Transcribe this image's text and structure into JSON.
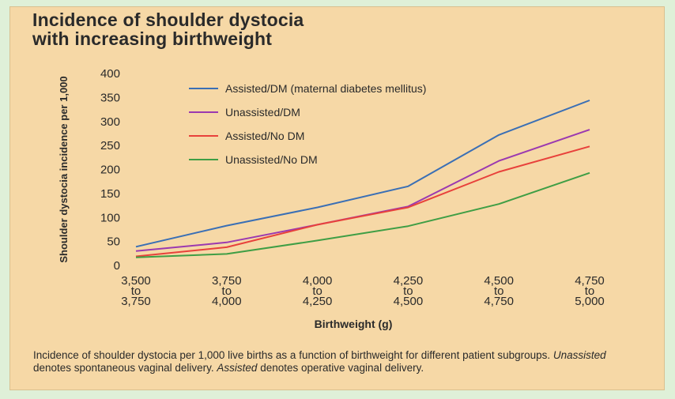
{
  "title_lines": [
    "Incidence of shoulder dystocia",
    "with increasing birthweight"
  ],
  "caption": {
    "part1": "Incidence of shoulder dystocia per 1,000 live births as a function of birthweight for different patient subgroups. ",
    "em1": "Unassisted",
    "part2": " denotes spontaneous vaginal delivery. ",
    "em2": "Assisted",
    "part3": " denotes operative vaginal delivery."
  },
  "chart_data": {
    "type": "line",
    "xlabel": "Birthweight (g)",
    "ylabel": "Shoulder dystocia incidence per 1,000",
    "ylim": [
      0,
      400
    ],
    "yticks": [
      0,
      50,
      100,
      150,
      200,
      250,
      300,
      350,
      400
    ],
    "categories": [
      [
        "3,500",
        "to",
        "3,750"
      ],
      [
        "3,750",
        "to",
        "4,000"
      ],
      [
        "4,000",
        "to",
        "4,250"
      ],
      [
        "4,250",
        "to",
        "4,500"
      ],
      [
        "4,500",
        "to",
        "4,750"
      ],
      [
        "4,750",
        "to",
        "5,000"
      ]
    ],
    "legend_position": "top-left",
    "grid": false,
    "series": [
      {
        "name": "Assisted/DM (maternal diabetes mellitus)",
        "color": "#3a6fb5",
        "values": [
          39,
          83,
          121,
          165,
          272,
          344
        ]
      },
      {
        "name": "Unassisted/DM",
        "color": "#9b39b0",
        "values": [
          30,
          48,
          85,
          123,
          218,
          283
        ]
      },
      {
        "name": "Assisted/No DM",
        "color": "#e8413b",
        "values": [
          19,
          38,
          85,
          121,
          195,
          248
        ]
      },
      {
        "name": "Unassisted/No DM",
        "color": "#3f9e45",
        "values": [
          17,
          24,
          52,
          82,
          128,
          193
        ]
      }
    ]
  }
}
